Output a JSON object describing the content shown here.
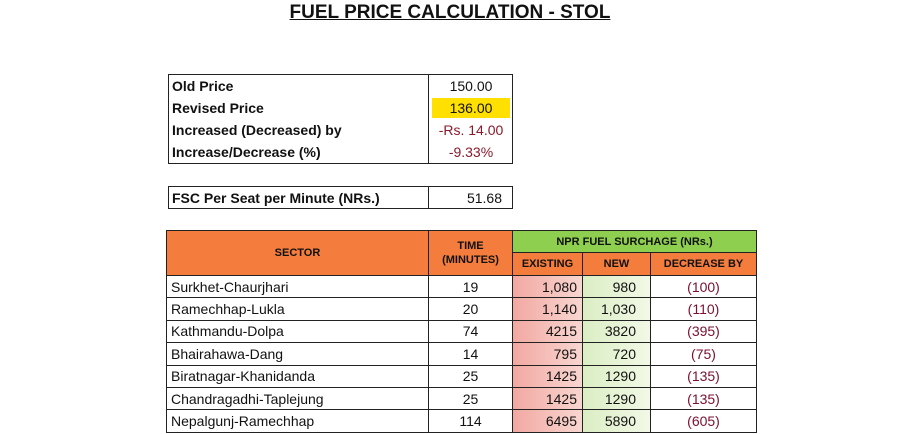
{
  "title": "FUEL PRICE CALCULATION - STOL",
  "price_table": {
    "rows": [
      [
        "Old Price",
        "150.00"
      ],
      [
        "Revised Price",
        "136.00"
      ],
      [
        "Increased (Decreased) by",
        "-Rs. 14.00"
      ],
      [
        "Increase/Decrease (%)",
        "-9.33%"
      ]
    ]
  },
  "fsc": {
    "label": "FSC Per Seat per Minute (NRs.)",
    "value": "51.68"
  },
  "sector_table": {
    "headers": {
      "sector": "SECTOR",
      "time": "TIME (MINUTES)",
      "surcharge": "NPR FUEL SURCHAGE (NRs.)",
      "existing": "EXISTING",
      "new": "NEW",
      "decrease": "DECREASE BY"
    },
    "rows": [
      [
        "Surkhet-Chaurjhari",
        "19",
        "1,080",
        "980",
        "(100)"
      ],
      [
        "Ramechhap-Lukla",
        "20",
        "1,140",
        "1,030",
        "(110)"
      ],
      [
        "Kathmandu-Dolpa",
        "74",
        "4215",
        "3820",
        "(395)"
      ],
      [
        "Bhairahawa-Dang",
        "14",
        "795",
        "720",
        "(75)"
      ],
      [
        "Biratnagar-Khanidanda",
        "25",
        "1425",
        "1290",
        "(135)"
      ],
      [
        "Chandragadhi-Taplejung",
        "25",
        "1425",
        "1290",
        "(135)"
      ],
      [
        "Nepalgunj-Ramechhap",
        "114",
        "6495",
        "5890",
        "(605)"
      ]
    ]
  }
}
